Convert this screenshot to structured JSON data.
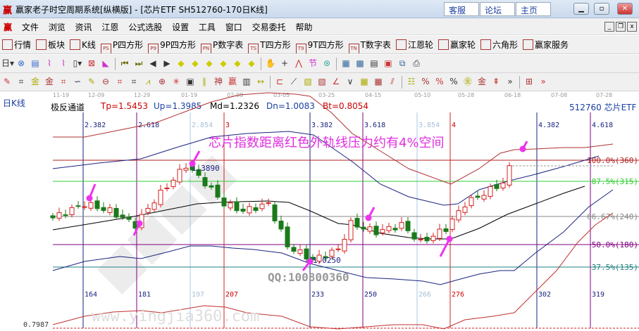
{
  "window": {
    "logo": "赢",
    "title": "赢家老子时空周期系统[纵横版] - [芯片ETF  SH512760-170日K线]",
    "links": [
      "客服",
      "论坛",
      "主页"
    ],
    "controls": [
      "minimize",
      "maximize",
      "close"
    ]
  },
  "menu": {
    "logo": "赢",
    "items": [
      "文件",
      "浏览",
      "资讯",
      "江恩",
      "公式选股",
      "设置",
      "工具",
      "窗口",
      "交易委托",
      "帮助"
    ]
  },
  "toolbar1": [
    {
      "icon": "grid-icon",
      "label": "行情"
    },
    {
      "icon": "blocks-icon",
      "label": "板块"
    },
    {
      "icon": "kline-icon",
      "label": "K线"
    },
    {
      "icon": "PS",
      "label": "P四方形"
    },
    {
      "icon": "P9",
      "label": "9P四方形"
    },
    {
      "icon": "PN",
      "label": "P数字表"
    },
    {
      "icon": "TS",
      "label": "T四方形"
    },
    {
      "icon": "T9",
      "label": "9T四方形"
    },
    {
      "icon": "TN",
      "label": "T数字表"
    },
    {
      "icon": "target-icon",
      "label": "江恩轮"
    },
    {
      "icon": "wheel-icon",
      "label": "赢家轮"
    },
    {
      "icon": "hexagon-icon",
      "label": "六角形"
    },
    {
      "icon": "dollar-icon",
      "label": "赢家服务"
    }
  ],
  "chart": {
    "period_label": "日K线",
    "dates": [
      "11-19",
      "12-09",
      "12-29",
      "01-19",
      "02-08",
      "03-05",
      "03-25",
      "04-15",
      "05-10",
      "05-28",
      "06-18",
      "07-08",
      "07-28"
    ],
    "indicator": {
      "name": "极反通道",
      "tp": "Tp=1.5453",
      "up": "Up=1.3985",
      "md": "Md=1.2326",
      "dn": "Dn=1.0083",
      "bt": "Bt=0.8054"
    },
    "symbol": "512760 芯片ETF",
    "annotation": "芯片指数距离红色外轨线压力约有4%空间",
    "high_label": "1.3890",
    "low_label": "1.0250",
    "watermark_qq": "QQ:100800360",
    "watermark_site": "www.yingjia360.com",
    "bottom_value": "0.7987",
    "fib_top": [
      "2.382",
      "2.618",
      "2.854",
      "3",
      "3.382",
      "3.618",
      "3.854",
      "4",
      "4.382",
      "4.618"
    ],
    "fib_bottom": [
      "164",
      "181",
      "197",
      "207",
      "233",
      "250",
      "266",
      "276",
      "302",
      "319"
    ],
    "levels": [
      "100.0%(360)",
      "87.5%(315)",
      "66.67%(240)",
      "50.0%(180)",
      "37.5%(135)"
    ],
    "colors": {
      "up": "#d42020",
      "down": "#1a7a1a",
      "arrow": "#ee33ee",
      "annotation": "#e030e0",
      "level100": "#b02020",
      "level87": "#33cc33",
      "level66": "#888888",
      "level50": "#800080",
      "level37": "#208080"
    }
  },
  "chart_data": {
    "type": "candlestick",
    "close_path": [
      [
        0,
        1.186
      ],
      [
        5,
        1.238
      ],
      [
        9,
        1.212
      ],
      [
        13,
        1.16
      ],
      [
        16,
        1.251
      ],
      [
        21,
        1.381
      ],
      [
        24,
        1.316
      ],
      [
        27,
        1.238
      ],
      [
        30,
        1.212
      ],
      [
        34,
        1.238
      ],
      [
        37,
        1.082
      ],
      [
        41,
        1.03
      ],
      [
        45,
        1.069
      ],
      [
        47,
        1.165
      ],
      [
        51,
        1.134
      ],
      [
        55,
        1.16
      ],
      [
        58,
        1.095
      ],
      [
        62,
        1.147
      ],
      [
        65,
        1.238
      ],
      [
        69,
        1.29
      ],
      [
        71,
        1.316
      ],
      [
        72,
        1.37
      ]
    ]
  }
}
